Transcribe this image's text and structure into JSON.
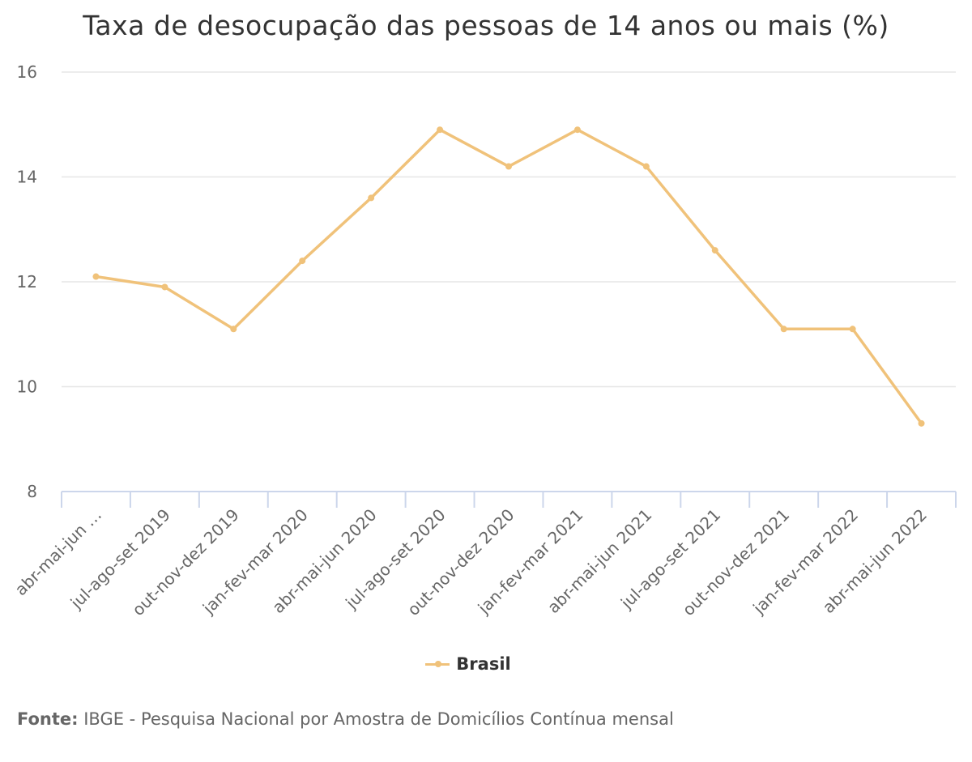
{
  "chart_data": {
    "type": "line",
    "title": "Taxa de desocupação das pessoas de 14 anos ou mais (%)",
    "categories": [
      "abr-mai-jun …",
      "jul-ago-set 2019",
      "out-nov-dez 2019",
      "jan-fev-mar 2020",
      "abr-mai-jun 2020",
      "jul-ago-set 2020",
      "out-nov-dez 2020",
      "jan-fev-mar 2021",
      "abr-mai-jun 2021",
      "jul-ago-set 2021",
      "out-nov-dez 2021",
      "jan-fev-mar 2022",
      "abr-mai-jun 2022"
    ],
    "series": [
      {
        "name": "Brasil",
        "color": "#f0c27a",
        "values": [
          12.1,
          11.9,
          11.1,
          12.4,
          13.6,
          14.9,
          14.2,
          14.9,
          14.2,
          12.6,
          11.1,
          11.1,
          9.3
        ]
      }
    ],
    "ylim": [
      8,
      16
    ],
    "yticks": [
      8,
      10,
      12,
      14,
      16
    ],
    "xlabel": "",
    "ylabel": "",
    "grid": true,
    "legend": "bottom-center"
  },
  "source": {
    "label": "Fonte:",
    "text": " IBGE - Pesquisa Nacional por Amostra de Domicílios Contínua mensal"
  }
}
